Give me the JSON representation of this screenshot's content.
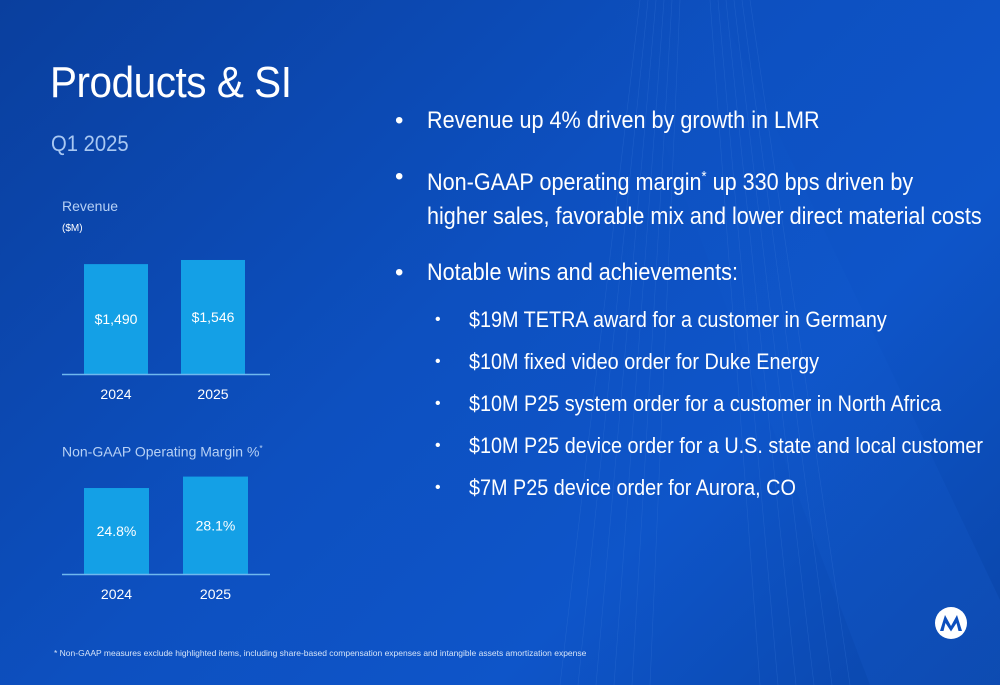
{
  "slide": {
    "title": "Products & SI",
    "subtitle": "Q1 2025",
    "colors": {
      "background": "#0d4fbe",
      "bar": "#14a0e6",
      "axis": "#6fb8ee",
      "text": "#ffffff"
    }
  },
  "chart_data": [
    {
      "type": "bar",
      "title": "Revenue",
      "unit": "($M)",
      "categories": [
        "2024",
        "2025"
      ],
      "values": [
        1490,
        1546
      ],
      "value_labels": [
        "$1,490",
        "$1,546"
      ],
      "ylim": [
        0,
        1600
      ],
      "grid": false
    },
    {
      "type": "bar",
      "title": "Non-GAAP Operating Margin %",
      "title_sup": "*",
      "categories": [
        "2024",
        "2025"
      ],
      "values": [
        24.8,
        28.1
      ],
      "value_labels": [
        "24.8%",
        "28.1%"
      ],
      "ylim": [
        0,
        30
      ],
      "grid": false
    }
  ],
  "bullets": [
    {
      "text": "Revenue up 4% driven by growth in LMR"
    },
    {
      "text": "Non-GAAP operating margin",
      "sup": "*",
      "text_after": " up 330 bps driven by",
      "line2": "higher sales, favorable mix and lower direct material costs"
    },
    {
      "text": "Notable wins and achievements:"
    }
  ],
  "sub_bullets": [
    "$19M TETRA award for a customer in Germany",
    "$10M fixed video order for Duke Energy",
    "$10M P25 system order for a customer in North Africa",
    "$10M P25 device order for a U.S. state and local customer",
    "$7M P25 device order for Aurora, CO"
  ],
  "bullet_glyph": "•",
  "footnote": "* Non-GAAP measures exclude highlighted items, including share-based compensation expenses and intangible assets amortization expense",
  "logo_icon": "motorola-batwing-icon"
}
